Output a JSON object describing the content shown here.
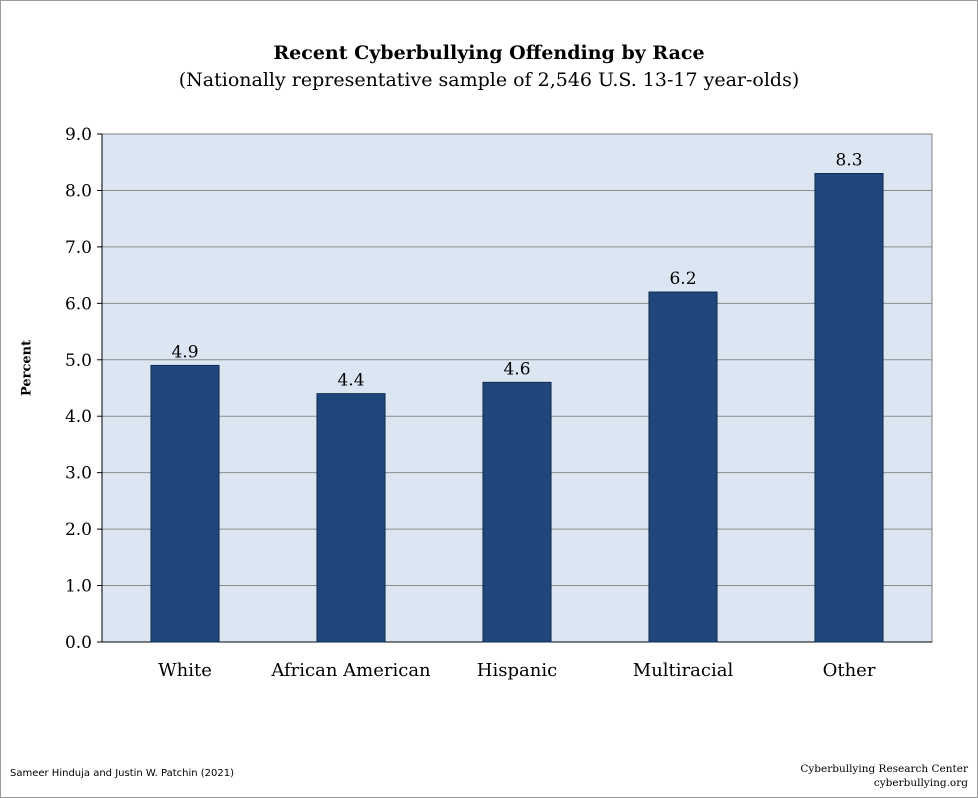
{
  "chart_data": {
    "type": "bar",
    "title": "Recent Cyberbullying Offending by Race",
    "subtitle": "(Nationally representative sample of 2,546 U.S. 13-17 year-olds)",
    "ylabel": "Percent",
    "xlabel": "",
    "categories": [
      "White",
      "African American",
      "Hispanic",
      "Multiracial",
      "Other"
    ],
    "values": [
      4.9,
      4.4,
      4.6,
      6.2,
      8.3
    ],
    "data_labels": [
      "4.9",
      "4.4",
      "4.6",
      "6.2",
      "8.3"
    ],
    "ylim": [
      0,
      9
    ],
    "yticks": [
      "0.0",
      "1.0",
      "2.0",
      "3.0",
      "4.0",
      "5.0",
      "6.0",
      "7.0",
      "8.0",
      "9.0"
    ],
    "grid": true,
    "legend": "none",
    "colors": {
      "bar": "#1f477b",
      "bar_edge": "#0f2a4f",
      "plot_background": "#dce6f2",
      "gridline": "#8c8c8c"
    }
  },
  "footer": {
    "left": "Sameer Hinduja and Justin W. Patchin (2021)",
    "right_line1": "Cyberbullying Research Center",
    "right_line2": "cyberbullying.org"
  }
}
